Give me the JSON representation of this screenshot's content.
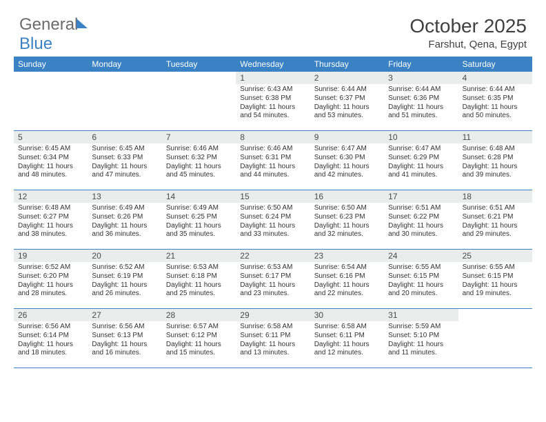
{
  "brand": {
    "part1": "General",
    "part2": "Blue"
  },
  "title": "October 2025",
  "subtitle": "Farshut, Qena, Egypt",
  "style": {
    "header_bg": "#3b82c4",
    "header_fg": "#ffffff",
    "daynum_bg": "#ebeded",
    "border_color": "#3b82c4",
    "page_bg": "#ffffff",
    "title_fontsize": 28,
    "subtitle_fontsize": 15,
    "weekday_fontsize": 12,
    "daynum_fontsize": 12,
    "info_fontsize": 10
  },
  "weekdays": [
    "Sunday",
    "Monday",
    "Tuesday",
    "Wednesday",
    "Thursday",
    "Friday",
    "Saturday"
  ],
  "first_weekday_index": 3,
  "days": [
    {
      "n": 1,
      "sunrise": "6:43 AM",
      "sunset": "6:38 PM",
      "daylight": "11 hours and 54 minutes."
    },
    {
      "n": 2,
      "sunrise": "6:44 AM",
      "sunset": "6:37 PM",
      "daylight": "11 hours and 53 minutes."
    },
    {
      "n": 3,
      "sunrise": "6:44 AM",
      "sunset": "6:36 PM",
      "daylight": "11 hours and 51 minutes."
    },
    {
      "n": 4,
      "sunrise": "6:44 AM",
      "sunset": "6:35 PM",
      "daylight": "11 hours and 50 minutes."
    },
    {
      "n": 5,
      "sunrise": "6:45 AM",
      "sunset": "6:34 PM",
      "daylight": "11 hours and 48 minutes."
    },
    {
      "n": 6,
      "sunrise": "6:45 AM",
      "sunset": "6:33 PM",
      "daylight": "11 hours and 47 minutes."
    },
    {
      "n": 7,
      "sunrise": "6:46 AM",
      "sunset": "6:32 PM",
      "daylight": "11 hours and 45 minutes."
    },
    {
      "n": 8,
      "sunrise": "6:46 AM",
      "sunset": "6:31 PM",
      "daylight": "11 hours and 44 minutes."
    },
    {
      "n": 9,
      "sunrise": "6:47 AM",
      "sunset": "6:30 PM",
      "daylight": "11 hours and 42 minutes."
    },
    {
      "n": 10,
      "sunrise": "6:47 AM",
      "sunset": "6:29 PM",
      "daylight": "11 hours and 41 minutes."
    },
    {
      "n": 11,
      "sunrise": "6:48 AM",
      "sunset": "6:28 PM",
      "daylight": "11 hours and 39 minutes."
    },
    {
      "n": 12,
      "sunrise": "6:48 AM",
      "sunset": "6:27 PM",
      "daylight": "11 hours and 38 minutes."
    },
    {
      "n": 13,
      "sunrise": "6:49 AM",
      "sunset": "6:26 PM",
      "daylight": "11 hours and 36 minutes."
    },
    {
      "n": 14,
      "sunrise": "6:49 AM",
      "sunset": "6:25 PM",
      "daylight": "11 hours and 35 minutes."
    },
    {
      "n": 15,
      "sunrise": "6:50 AM",
      "sunset": "6:24 PM",
      "daylight": "11 hours and 33 minutes."
    },
    {
      "n": 16,
      "sunrise": "6:50 AM",
      "sunset": "6:23 PM",
      "daylight": "11 hours and 32 minutes."
    },
    {
      "n": 17,
      "sunrise": "6:51 AM",
      "sunset": "6:22 PM",
      "daylight": "11 hours and 30 minutes."
    },
    {
      "n": 18,
      "sunrise": "6:51 AM",
      "sunset": "6:21 PM",
      "daylight": "11 hours and 29 minutes."
    },
    {
      "n": 19,
      "sunrise": "6:52 AM",
      "sunset": "6:20 PM",
      "daylight": "11 hours and 28 minutes."
    },
    {
      "n": 20,
      "sunrise": "6:52 AM",
      "sunset": "6:19 PM",
      "daylight": "11 hours and 26 minutes."
    },
    {
      "n": 21,
      "sunrise": "6:53 AM",
      "sunset": "6:18 PM",
      "daylight": "11 hours and 25 minutes."
    },
    {
      "n": 22,
      "sunrise": "6:53 AM",
      "sunset": "6:17 PM",
      "daylight": "11 hours and 23 minutes."
    },
    {
      "n": 23,
      "sunrise": "6:54 AM",
      "sunset": "6:16 PM",
      "daylight": "11 hours and 22 minutes."
    },
    {
      "n": 24,
      "sunrise": "6:55 AM",
      "sunset": "6:15 PM",
      "daylight": "11 hours and 20 minutes."
    },
    {
      "n": 25,
      "sunrise": "6:55 AM",
      "sunset": "6:15 PM",
      "daylight": "11 hours and 19 minutes."
    },
    {
      "n": 26,
      "sunrise": "6:56 AM",
      "sunset": "6:14 PM",
      "daylight": "11 hours and 18 minutes."
    },
    {
      "n": 27,
      "sunrise": "6:56 AM",
      "sunset": "6:13 PM",
      "daylight": "11 hours and 16 minutes."
    },
    {
      "n": 28,
      "sunrise": "6:57 AM",
      "sunset": "6:12 PM",
      "daylight": "11 hours and 15 minutes."
    },
    {
      "n": 29,
      "sunrise": "6:58 AM",
      "sunset": "6:11 PM",
      "daylight": "11 hours and 13 minutes."
    },
    {
      "n": 30,
      "sunrise": "6:58 AM",
      "sunset": "6:11 PM",
      "daylight": "11 hours and 12 minutes."
    },
    {
      "n": 31,
      "sunrise": "5:59 AM",
      "sunset": "5:10 PM",
      "daylight": "11 hours and 11 minutes."
    }
  ],
  "labels": {
    "sunrise": "Sunrise:",
    "sunset": "Sunset:",
    "daylight": "Daylight:"
  }
}
